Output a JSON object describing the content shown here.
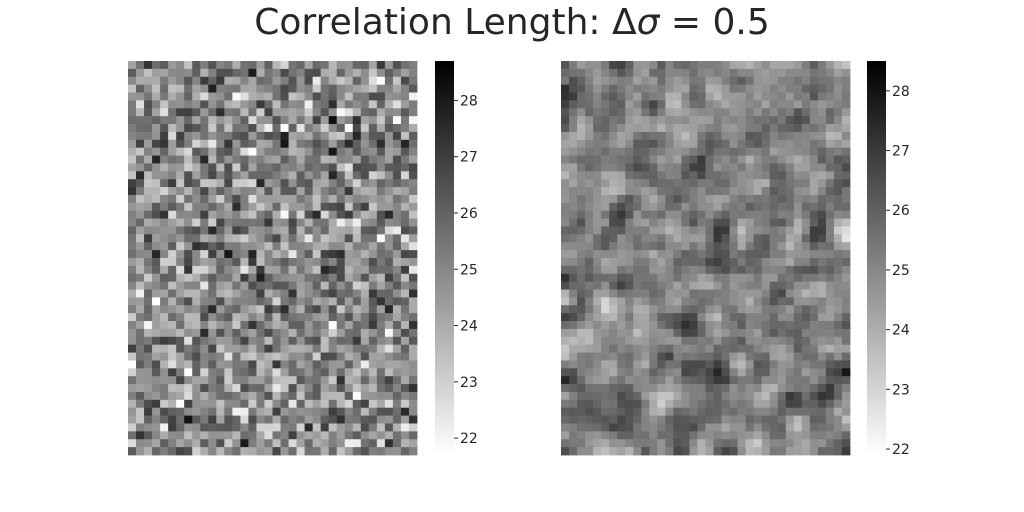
{
  "title": {
    "prefix": "Correlation Length: Δ",
    "symbol": "σ",
    "suffix": " = 0.5"
  },
  "colors": {
    "low": "#ffffff",
    "high": "#000000",
    "text": "#262626",
    "background": "#ffffff"
  },
  "chart_data": [
    {
      "type": "heatmap",
      "title": "",
      "xlabel": "",
      "ylabel": "",
      "cmap": "Greys",
      "colorbar": {
        "vmin": 21.7,
        "vmax": 28.7,
        "ticks": [
          22,
          23,
          24,
          25,
          26,
          27,
          28
        ]
      },
      "grid": {
        "rows": 50,
        "cols": 36
      },
      "correlation": "uncorrelated",
      "value_summary": {
        "mean": 25.0,
        "std": 1.2
      }
    },
    {
      "type": "heatmap",
      "title": "",
      "xlabel": "",
      "ylabel": "",
      "cmap": "Greys",
      "colorbar": {
        "vmin": 21.9,
        "vmax": 28.5,
        "ticks": [
          22,
          23,
          24,
          25,
          26,
          27,
          28
        ]
      },
      "grid": {
        "rows": 50,
        "cols": 36
      },
      "correlation": "short-range (Δσ = 0.5)",
      "value_summary": {
        "mean": 25.2,
        "std": 1.1
      }
    }
  ]
}
